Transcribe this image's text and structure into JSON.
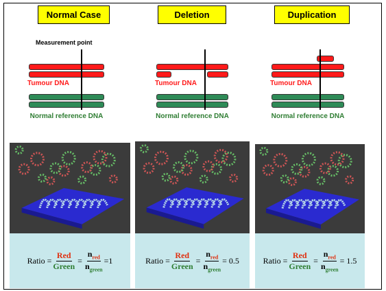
{
  "measurement_label": "Measurement point",
  "panels": [
    {
      "title": "Normal Case",
      "tumour_label": "Tumour DNA",
      "normal_label": "Normal reference DNA",
      "ratio": {
        "prefix": "Ratio =",
        "numerator": "Red",
        "denominator": "Green",
        "equals": "=",
        "n_num": "n",
        "n_num_sub": "red",
        "n_den": "n",
        "n_den_sub": "green",
        "result": "=1"
      }
    },
    {
      "title": "Deletion",
      "tumour_label": "Tumour DNA",
      "normal_label": "Normal reference DNA",
      "ratio": {
        "prefix": "Ratio =",
        "numerator": "Red",
        "denominator": "Green",
        "equals": "=",
        "n_num": "n",
        "n_num_sub": "red",
        "n_den": "n",
        "n_den_sub": "green",
        "result": "= 0.5"
      }
    },
    {
      "title": "Duplication",
      "tumour_label": "Tumour DNA",
      "normal_label": "Normal reference DNA",
      "ratio": {
        "prefix": "Ratio =",
        "numerator": "Red",
        "denominator": "Green",
        "equals": "=",
        "n_num": "n",
        "n_num_sub": "red",
        "n_den": "n",
        "n_den_sub": "green",
        "result": "= 1.5"
      }
    }
  ]
}
